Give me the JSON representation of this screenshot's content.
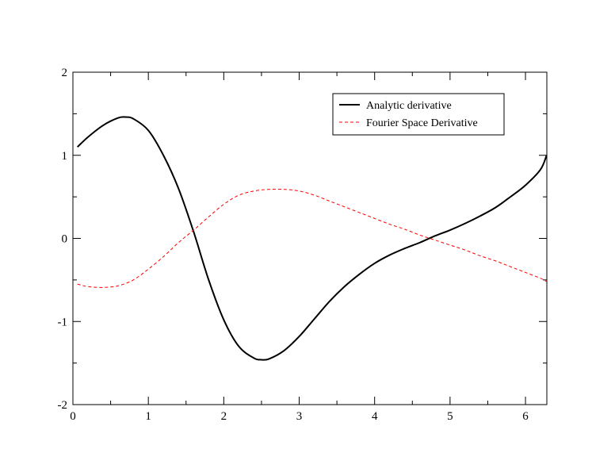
{
  "chart_data": {
    "type": "line",
    "title": "",
    "xlabel": "",
    "ylabel": "",
    "xlim": [
      0,
      6.2832
    ],
    "ylim": [
      -2,
      2
    ],
    "x_ticks": [
      0,
      1,
      2,
      3,
      4,
      5,
      6
    ],
    "y_ticks": [
      -2,
      -1,
      0,
      1,
      2
    ],
    "grid": false,
    "legend_position": "top-right",
    "series": [
      {
        "name": "Analytic derivative",
        "color": "#000000",
        "style": "solid",
        "x": [
          0.06,
          0.2,
          0.4,
          0.6,
          0.7,
          0.8,
          1.0,
          1.2,
          1.4,
          1.6,
          1.8,
          2.0,
          2.2,
          2.4,
          2.5,
          2.6,
          2.8,
          3.0,
          3.2,
          3.4,
          3.6,
          3.8,
          4.0,
          4.2,
          4.4,
          4.6,
          4.8,
          5.0,
          5.2,
          5.4,
          5.6,
          5.8,
          6.0,
          6.2,
          6.28
        ],
        "y": [
          1.1,
          1.22,
          1.36,
          1.45,
          1.46,
          1.44,
          1.3,
          1.0,
          0.6,
          0.08,
          -0.5,
          -0.98,
          -1.3,
          -1.44,
          -1.46,
          -1.45,
          -1.35,
          -1.18,
          -0.97,
          -0.76,
          -0.58,
          -0.43,
          -0.3,
          -0.2,
          -0.12,
          -0.05,
          0.03,
          0.1,
          0.18,
          0.27,
          0.37,
          0.5,
          0.64,
          0.83,
          1.0
        ]
      },
      {
        "name": "Fourier Space Derivative",
        "color": "#ff0000",
        "style": "dashed",
        "x": [
          0.06,
          0.2,
          0.4,
          0.6,
          0.8,
          1.0,
          1.2,
          1.4,
          1.6,
          1.8,
          2.0,
          2.2,
          2.4,
          2.6,
          2.8,
          3.0,
          3.2,
          3.4,
          3.6,
          3.8,
          4.0,
          4.2,
          4.4,
          4.6,
          4.8,
          5.0,
          5.2,
          5.4,
          5.6,
          5.8,
          6.0,
          6.2,
          6.28
        ],
        "y": [
          -0.55,
          -0.58,
          -0.59,
          -0.57,
          -0.5,
          -0.37,
          -0.22,
          -0.05,
          0.1,
          0.26,
          0.41,
          0.52,
          0.57,
          0.59,
          0.59,
          0.57,
          0.52,
          0.45,
          0.38,
          0.31,
          0.24,
          0.17,
          0.11,
          0.04,
          -0.02,
          -0.08,
          -0.14,
          -0.21,
          -0.27,
          -0.34,
          -0.41,
          -0.48,
          -0.52
        ]
      }
    ]
  }
}
